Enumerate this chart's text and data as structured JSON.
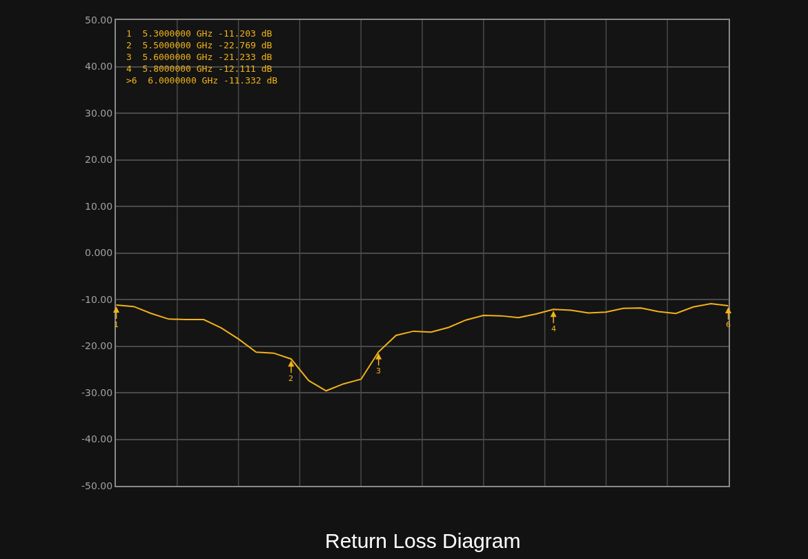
{
  "chart_data": {
    "type": "line",
    "title": "Return Loss Diagram",
    "categories": [
      null,
      null,
      null,
      null,
      null,
      null,
      null,
      null,
      null,
      null,
      null,
      null,
      null,
      null,
      null,
      null,
      null,
      null,
      null,
      null,
      null,
      null,
      null,
      null,
      null,
      null,
      null,
      null,
      null,
      null,
      null,
      null,
      null,
      null,
      null,
      null
    ],
    "ylim": [
      -50,
      50
    ],
    "yticks": [
      {
        "value": 50,
        "label": "50.00"
      },
      {
        "value": 40,
        "label": "40.00"
      },
      {
        "value": 30,
        "label": "30.00"
      },
      {
        "value": 20,
        "label": "20.00"
      },
      {
        "value": 10,
        "label": "10.00"
      },
      {
        "value": 0,
        "label": "0.000"
      },
      {
        "value": -10,
        "label": "-10.00"
      },
      {
        "value": -20,
        "label": "-20.00"
      },
      {
        "value": -30,
        "label": "-30.00"
      },
      {
        "value": -40,
        "label": "-40.00"
      },
      {
        "value": -50,
        "label": "-50.00"
      }
    ],
    "tick_labels": "y",
    "grid": true,
    "marker": "none",
    "series": [
      {
        "color": "#f2b318",
        "values": [
          -11.203,
          -11.5,
          -13.0,
          -14.2,
          -14.3,
          -14.3,
          -16.1,
          -18.5,
          -21.3,
          -21.5,
          -22.769,
          -27.4,
          -29.6,
          -28.1,
          -27.1,
          -21.233,
          -17.7,
          -16.8,
          -17.0,
          -16.0,
          -14.4,
          -13.4,
          -13.5,
          -13.9,
          -13.1,
          -12.111,
          -12.3,
          -12.9,
          -12.7,
          -11.9,
          -11.8,
          -12.6,
          -13.0,
          -11.6,
          -10.9,
          -11.332
        ]
      }
    ],
    "annotations": [
      "1  5.3000000 GHz -11.203 dB",
      "2  5.5000000 GHz -22.769 dB",
      "3  5.6000000 GHz -21.233 dB",
      "4  5.8000000 GHz -12.111 dB",
      ">6  6.0000000 GHz -11.332 dB",
      {
        "text": "1",
        "y": -11.203
      },
      {
        "text": "2",
        "y": -22.769
      },
      {
        "text": "3",
        "y": -21.233
      },
      {
        "text": "4",
        "y": -12.111
      },
      {
        "text": "6",
        "y": -11.332
      }
    ]
  }
}
